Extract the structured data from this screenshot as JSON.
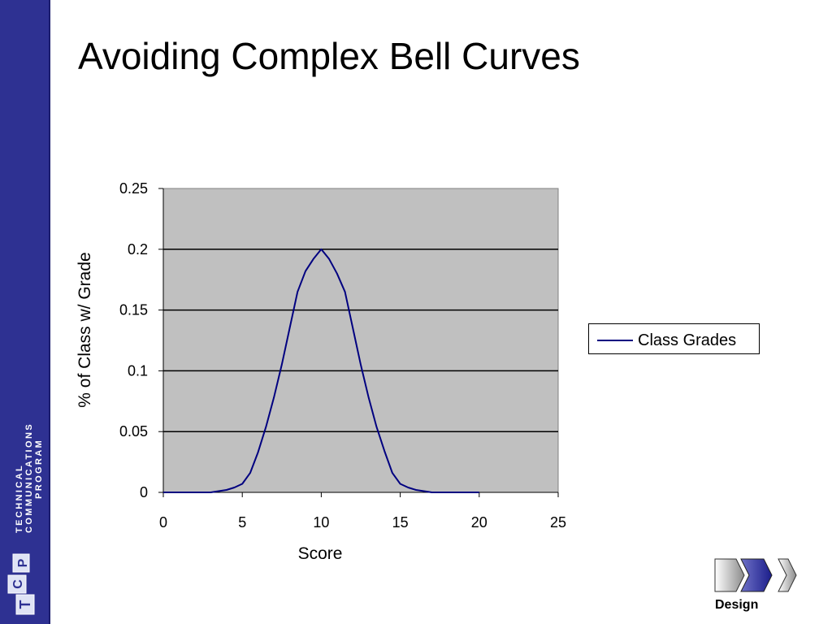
{
  "slide": {
    "title": "Avoiding Complex Bell Curves"
  },
  "sidebar": {
    "line1": "Technical",
    "line2": "Communications",
    "line3": "Program",
    "logo_letters": [
      "T",
      "C",
      "P"
    ],
    "color": "#2e3192"
  },
  "nav": {
    "label": "Design",
    "steps": [
      "previous-step",
      "current-step",
      "next-step"
    ]
  },
  "chart_data": {
    "type": "line",
    "title": "",
    "xlabel": "Score",
    "ylabel": "% of Class w/ Grade",
    "xlim": [
      0,
      25
    ],
    "ylim": [
      0,
      0.25
    ],
    "xticks": [
      0,
      5,
      10,
      15,
      20,
      25
    ],
    "xtick_labels": [
      "0",
      "5",
      "10",
      "15",
      "20",
      "25"
    ],
    "yticks": [
      0,
      0.05,
      0.1,
      0.15,
      0.2,
      0.25
    ],
    "ytick_labels": [
      "0",
      "0.05",
      "0.1",
      "0.15",
      "0.2",
      "0.25"
    ],
    "grid": "horizontal",
    "plot_background": "#c0c0c0",
    "legend_position": "right",
    "series": [
      {
        "name": "Class Grades",
        "color": "#000080",
        "x": [
          0,
          1,
          2,
          3,
          3.5,
          4,
          4.5,
          5,
          5.5,
          6,
          6.5,
          7,
          7.5,
          8,
          8.5,
          9,
          9.5,
          10,
          10.5,
          11,
          11.5,
          12,
          12.5,
          13,
          13.5,
          14,
          14.5,
          15,
          15.5,
          16,
          16.5,
          17,
          18,
          19,
          20
        ],
        "y": [
          0,
          0,
          0,
          0,
          0.001,
          0.002,
          0.004,
          0.007,
          0.016,
          0.033,
          0.054,
          0.078,
          0.105,
          0.135,
          0.165,
          0.182,
          0.192,
          0.2,
          0.192,
          0.18,
          0.165,
          0.135,
          0.105,
          0.078,
          0.054,
          0.034,
          0.016,
          0.007,
          0.004,
          0.002,
          0.001,
          0,
          0,
          0,
          0
        ]
      }
    ]
  }
}
